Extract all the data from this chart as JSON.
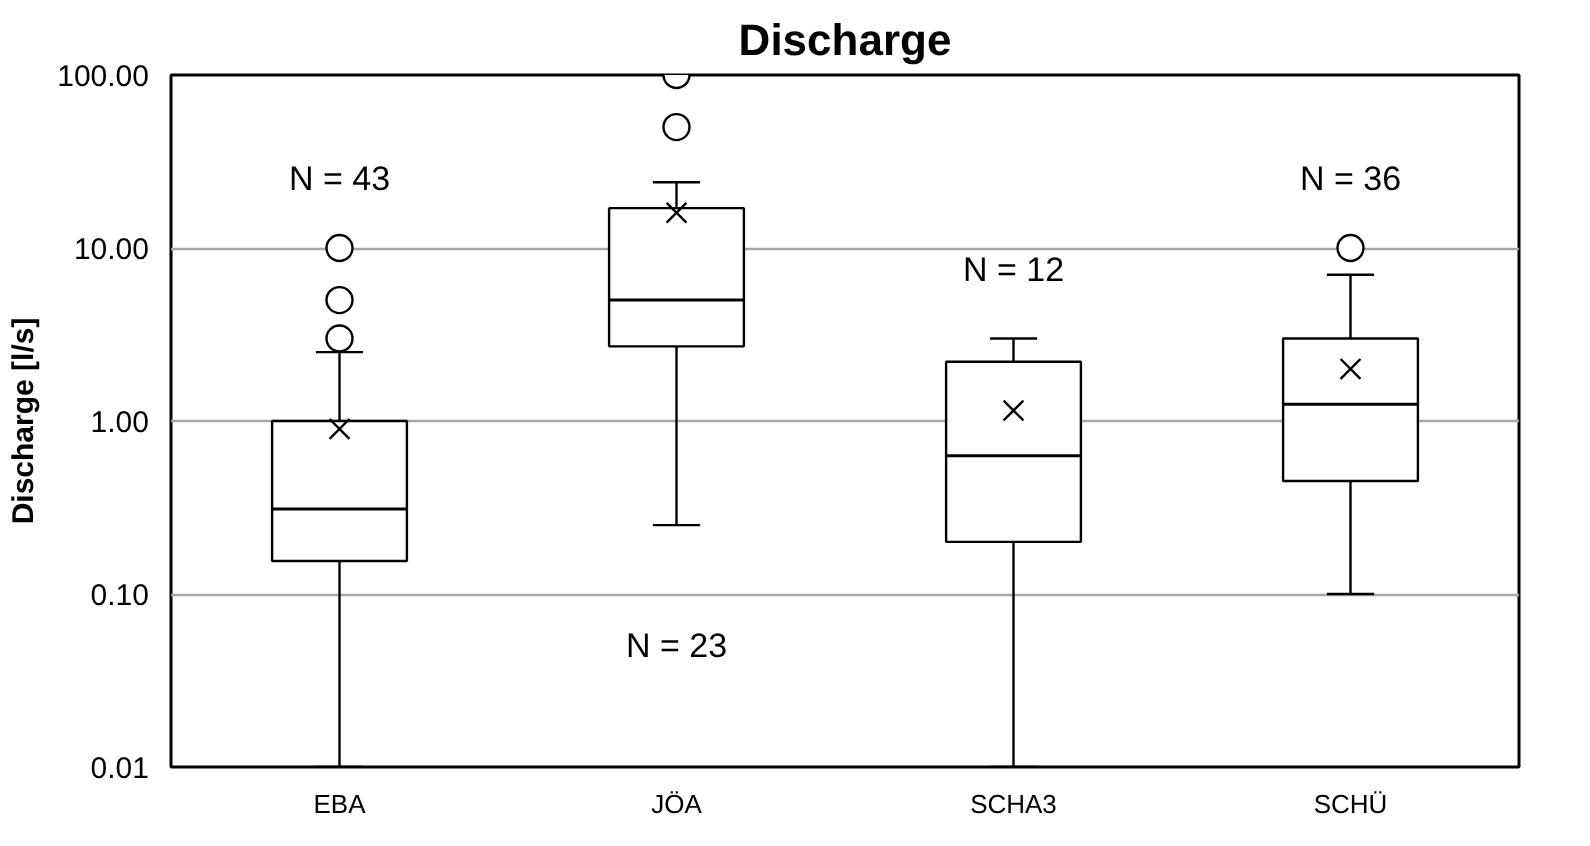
{
  "chart_data": {
    "type": "box",
    "title": "Discharge",
    "ylabel": "Discharge [l/s]",
    "categories": [
      "EBA",
      "JÖA",
      "SCHA3",
      "SCHÜ"
    ],
    "boxes": [
      {
        "low": 0.01,
        "q1": 0.155,
        "median": 0.31,
        "q3": 1.0,
        "high": 2.5,
        "mean": 0.9,
        "outliers": [
          3,
          5,
          10
        ]
      },
      {
        "low": 0.25,
        "q1": 2.7,
        "median": 5,
        "q3": 17,
        "high": 24,
        "mean": 16,
        "outliers": [
          50,
          100
        ]
      },
      {
        "low": 0.01,
        "q1": 0.2,
        "median": 0.63,
        "q3": 2.2,
        "high": 3,
        "mean": 1.15
      },
      {
        "low": 0.1,
        "q1": 0.45,
        "median": 1.25,
        "q3": 3,
        "high": 7,
        "mean": 2,
        "outliers": [
          10
        ]
      }
    ],
    "log": true,
    "ylim": [
      0.01,
      100
    ],
    "yticks": [
      {
        "value": 0.01,
        "label": "0.01"
      },
      {
        "value": 0.1,
        "label": "0.10"
      },
      {
        "value": 1,
        "label": "1.00"
      },
      {
        "value": 10,
        "label": "10.00"
      },
      {
        "value": 100,
        "label": "100.00"
      }
    ],
    "grid": "y",
    "annotations": [
      "N = 43",
      "N = 23",
      "N = 12",
      "N = 36"
    ]
  }
}
